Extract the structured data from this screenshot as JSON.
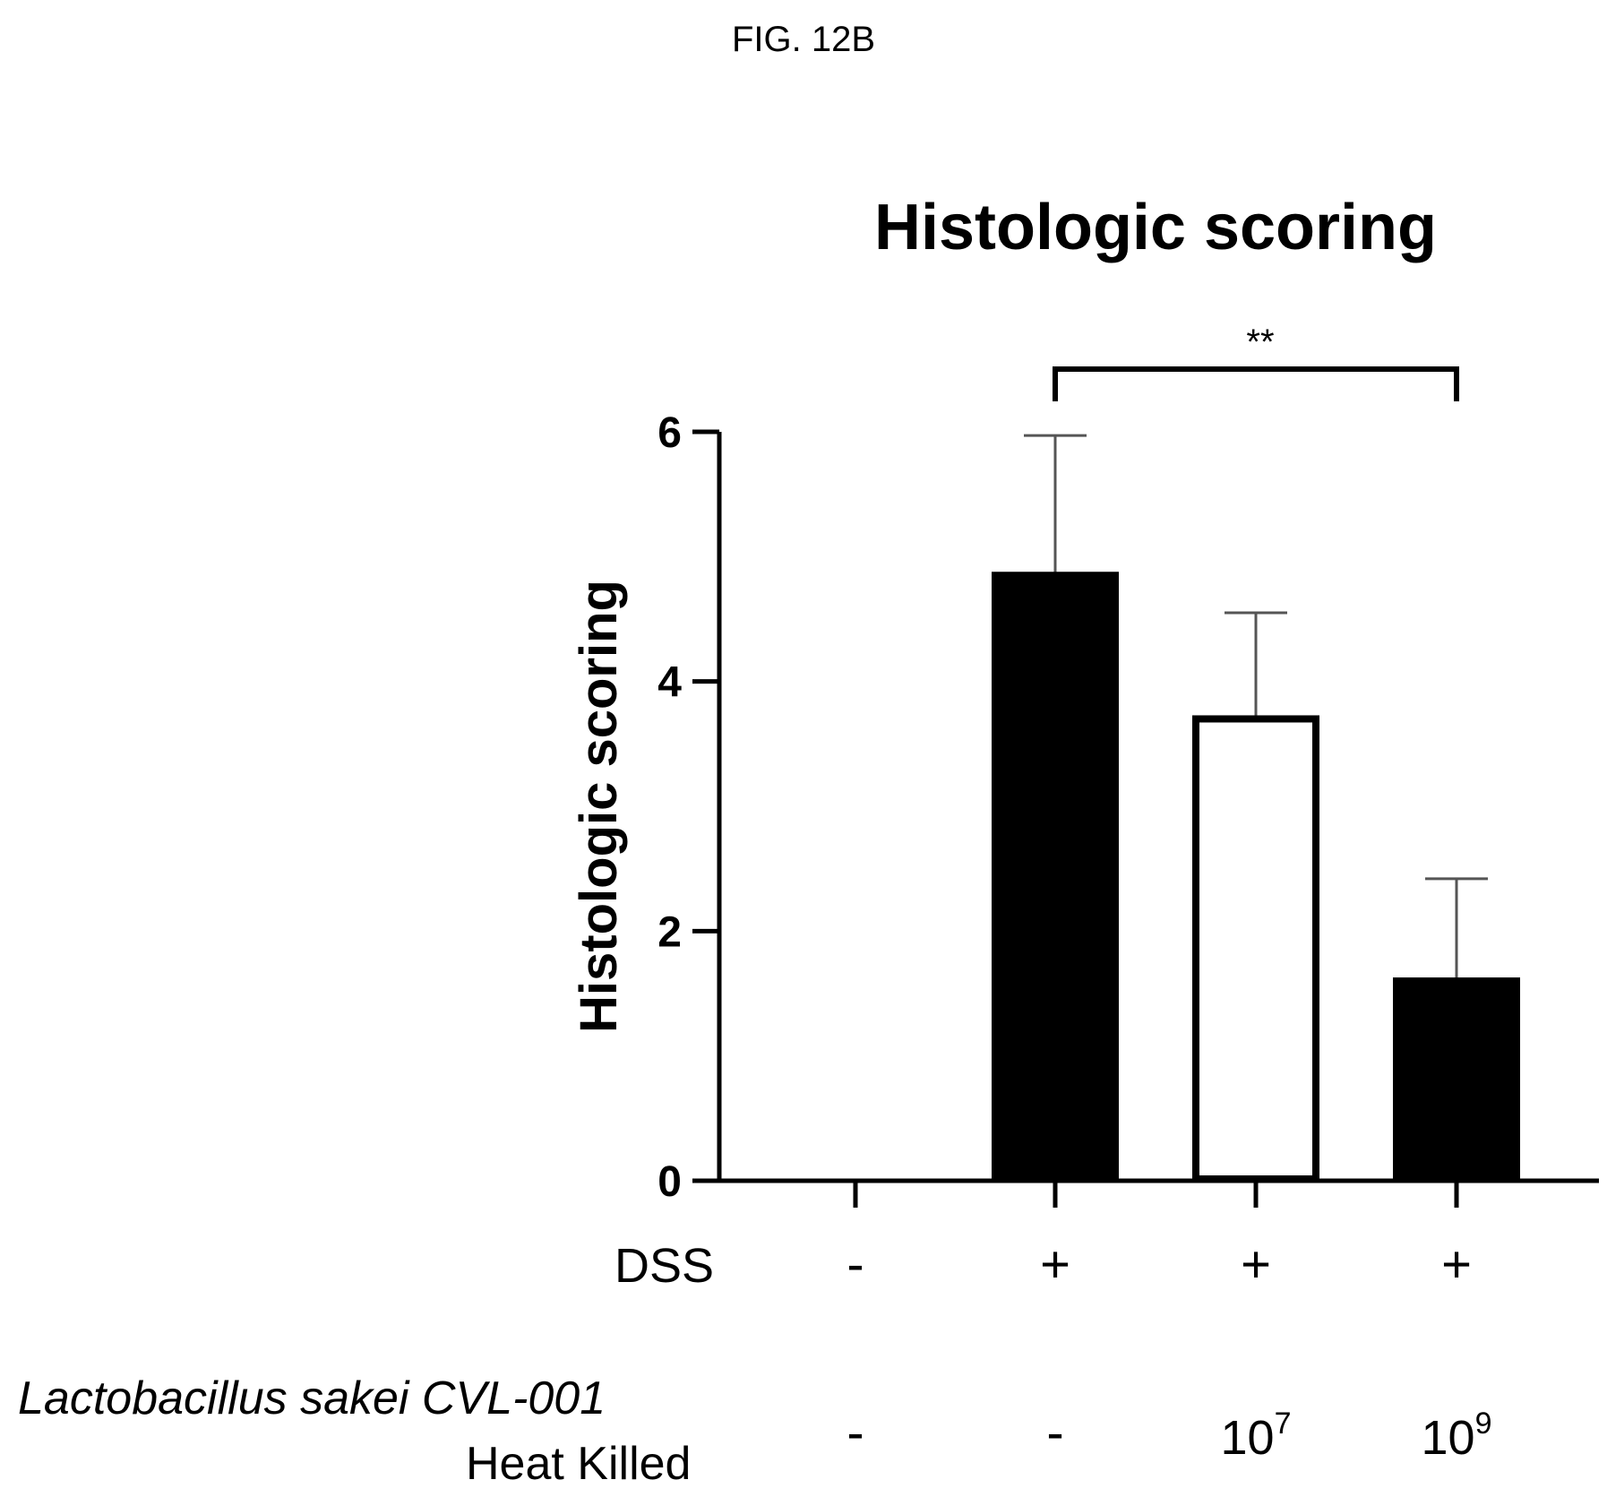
{
  "figure_label": "FIG. 12B",
  "chart_data": {
    "type": "bar",
    "title": "Histologic scoring",
    "ylabel": "Histologic scoring",
    "xlabel": "",
    "ylim": [
      0,
      6
    ],
    "yticks": [
      0,
      2,
      4,
      6
    ],
    "categories": [
      "- / -",
      "+ / -",
      "+ / 10^7",
      "+ / 10^9"
    ],
    "values": [
      0,
      4.85,
      3.7,
      1.6
    ],
    "error_upper": [
      0,
      5.97,
      4.55,
      2.42
    ],
    "bar_fill": [
      "#000000",
      "#000000",
      "#ffffff",
      "#000000"
    ],
    "significance": {
      "from_index": 1,
      "to_index": 3,
      "label": "**"
    },
    "grid": false
  },
  "conditions": {
    "dss_label": "DSS",
    "dss_values": [
      "-",
      "+",
      "+",
      "+"
    ],
    "treatment_label_line1": "Lactobacillus sakei CVL-001",
    "treatment_label_line2": "Heat Killed",
    "treatment_values": [
      {
        "text": "-"
      },
      {
        "text": "-"
      },
      {
        "base": "10",
        "exp": "7"
      },
      {
        "base": "10",
        "exp": "9"
      }
    ]
  },
  "colors": {
    "ink": "#000000",
    "background": "#ffffff",
    "error_bar": "#555555"
  }
}
